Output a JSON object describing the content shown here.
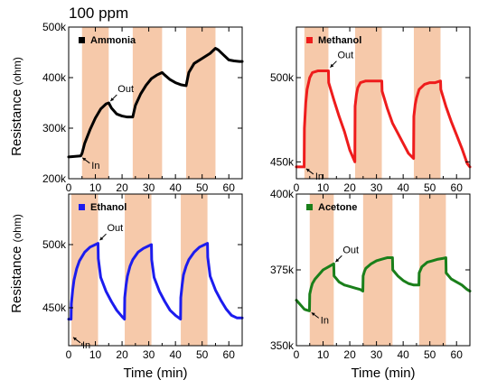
{
  "heading": "100 ppm",
  "ylabel_main": "Resistance",
  "ylabel_unit": "(ohm)",
  "xlabel": "Time (min)",
  "chart_data": [
    {
      "type": "line",
      "legend": "Ammonia",
      "color": "#000000",
      "xlim": [
        0,
        65
      ],
      "ylim": [
        200000,
        500000
      ],
      "xticks": [
        "0",
        "10",
        "20",
        "30",
        "40",
        "50",
        "60"
      ],
      "yticks": [
        {
          "value": 200000,
          "label": "200k"
        },
        {
          "value": 300000,
          "label": "300k"
        },
        {
          "value": 400000,
          "label": "400k"
        },
        {
          "value": 500000,
          "label": "500k"
        }
      ],
      "bands": [
        [
          5,
          15
        ],
        [
          24,
          35
        ],
        [
          44,
          55
        ]
      ],
      "annotations": [
        {
          "text": "In",
          "x": 4.5,
          "y": 245000
        },
        {
          "text": "Out",
          "x": 15,
          "y": 350000
        }
      ],
      "x": [
        0,
        4.5,
        5,
        6,
        8,
        10,
        12,
        14,
        15,
        16,
        18,
        20,
        22,
        24,
        25,
        27,
        29,
        31,
        33,
        35,
        36,
        38,
        40,
        42,
        44,
        45,
        47,
        50,
        53,
        55,
        56,
        58,
        60,
        62,
        64,
        65
      ],
      "y": [
        243000,
        245000,
        250000,
        270000,
        297000,
        320000,
        338000,
        348000,
        350000,
        340000,
        328000,
        324000,
        322000,
        322000,
        345000,
        368000,
        385000,
        398000,
        405000,
        410000,
        405000,
        396000,
        390000,
        386000,
        384000,
        410000,
        428000,
        438000,
        448000,
        458000,
        455000,
        445000,
        435000,
        433000,
        432000,
        432000
      ]
    },
    {
      "type": "line",
      "legend": "Methanol",
      "color": "#ee1c1c",
      "xlim": [
        0,
        65
      ],
      "ylim": [
        440000,
        530000
      ],
      "xticks": [
        "0",
        "10",
        "20",
        "30",
        "40",
        "50",
        "60"
      ],
      "yticks": [
        {
          "value": 450000,
          "label": "450k"
        },
        {
          "value": 500000,
          "label": "500k"
        }
      ],
      "bands": [
        [
          3,
          12
        ],
        [
          22,
          32
        ],
        [
          44,
          54
        ]
      ],
      "annotations": [
        {
          "text": "In",
          "x": 3,
          "y": 447000
        },
        {
          "text": "Out",
          "x": 12,
          "y": 505000
        }
      ],
      "x": [
        0,
        2.9,
        3,
        3.5,
        4,
        5,
        6,
        8,
        10,
        12,
        12.1,
        14,
        16,
        18,
        20,
        21.9,
        22,
        22.5,
        23,
        24,
        26,
        28,
        30,
        32,
        32.1,
        34,
        36,
        38,
        40,
        42,
        43.9,
        44,
        44.5,
        45,
        46,
        48,
        50,
        52,
        54,
        54.1,
        56,
        58,
        60,
        62,
        64,
        65
      ],
      "y": [
        447000,
        447000,
        470000,
        485000,
        493000,
        500000,
        503000,
        504000,
        504000,
        504000,
        497000,
        487000,
        477000,
        468000,
        457000,
        450000,
        483000,
        490000,
        494000,
        497000,
        498000,
        498000,
        498000,
        498000,
        492000,
        482000,
        473000,
        467000,
        461000,
        455000,
        452000,
        477000,
        484000,
        488000,
        493000,
        496000,
        497000,
        497000,
        498000,
        493000,
        483000,
        474000,
        466000,
        458000,
        449000,
        447000
      ]
    },
    {
      "type": "line",
      "legend": "Ethanol",
      "color": "#1c1cee",
      "xlim": [
        0,
        65
      ],
      "ylim": [
        420000,
        540000
      ],
      "xticks": [
        "0",
        "10",
        "20",
        "30",
        "40",
        "50",
        "60"
      ],
      "yticks": [
        {
          "value": 450000,
          "label": "450k"
        },
        {
          "value": 500000,
          "label": "500k"
        }
      ],
      "bands": [
        [
          1,
          11
        ],
        [
          21,
          31
        ],
        [
          42,
          52
        ]
      ],
      "annotations": [
        {
          "text": "In",
          "x": 1,
          "y": 428000
        },
        {
          "text": "Out",
          "x": 11,
          "y": 502000
        }
      ],
      "x": [
        0,
        0.9,
        1,
        1.5,
        2,
        3,
        4,
        6,
        8,
        10,
        11,
        11.1,
        12,
        14,
        16,
        18,
        20,
        20.9,
        21,
        21.5,
        22,
        23,
        24,
        26,
        28,
        30,
        31,
        31.1,
        32,
        34,
        36,
        38,
        40,
        41.9,
        42,
        42.5,
        43,
        44,
        45,
        47,
        49,
        51,
        52,
        52.1,
        53,
        55,
        57,
        59,
        61,
        63,
        65
      ],
      "y": [
        441000,
        441000,
        453000,
        464000,
        472000,
        481000,
        487000,
        494000,
        498000,
        500000,
        501000,
        489000,
        474000,
        463000,
        455000,
        448000,
        443000,
        441000,
        458000,
        468000,
        475000,
        483000,
        488000,
        494000,
        497000,
        499000,
        500000,
        488000,
        474000,
        463000,
        455000,
        448000,
        444000,
        441000,
        458000,
        468000,
        476000,
        483000,
        488000,
        494000,
        498000,
        500000,
        501000,
        490000,
        475000,
        464000,
        456000,
        449000,
        444000,
        442000,
        442000
      ]
    },
    {
      "type": "line",
      "legend": "Acetone",
      "color": "#1a7f1a",
      "xlim": [
        0,
        65
      ],
      "ylim": [
        350000,
        400000
      ],
      "xticks": [
        "0",
        "10",
        "20",
        "30",
        "40",
        "50",
        "60"
      ],
      "yticks": [
        {
          "value": 350000,
          "label": "350k"
        },
        {
          "value": 375000,
          "label": "375k"
        },
        {
          "value": 400000,
          "label": "400k"
        }
      ],
      "bands": [
        [
          5,
          14
        ],
        [
          25,
          36
        ],
        [
          46,
          56
        ]
      ],
      "annotations": [
        {
          "text": "In",
          "x": 5,
          "y": 361500
        },
        {
          "text": "Out",
          "x": 14,
          "y": 377000
        }
      ],
      "x": [
        0,
        1,
        2,
        3,
        4,
        4.9,
        5,
        5.5,
        6,
        7,
        8,
        10,
        12,
        14,
        14.1,
        16,
        18,
        20,
        22,
        24,
        24.9,
        25,
        25.5,
        26,
        28,
        30,
        32,
        34,
        36,
        36.1,
        38,
        40,
        42,
        44,
        45.9,
        46,
        46.5,
        47,
        49,
        51,
        53,
        55,
        56,
        56.1,
        58,
        60,
        62,
        64,
        65
      ],
      "y": [
        365000,
        364000,
        363000,
        362000,
        361700,
        361500,
        367000,
        369000,
        370500,
        372000,
        373000,
        375000,
        376000,
        377000,
        373000,
        371000,
        370000,
        369500,
        369000,
        368500,
        368000,
        373000,
        374500,
        375500,
        377000,
        378000,
        378500,
        379000,
        379000,
        375000,
        373000,
        371500,
        370500,
        370000,
        370000,
        374000,
        375000,
        376000,
        377500,
        378000,
        378500,
        378800,
        379000,
        374000,
        372000,
        371000,
        370000,
        368500,
        368000
      ]
    }
  ]
}
